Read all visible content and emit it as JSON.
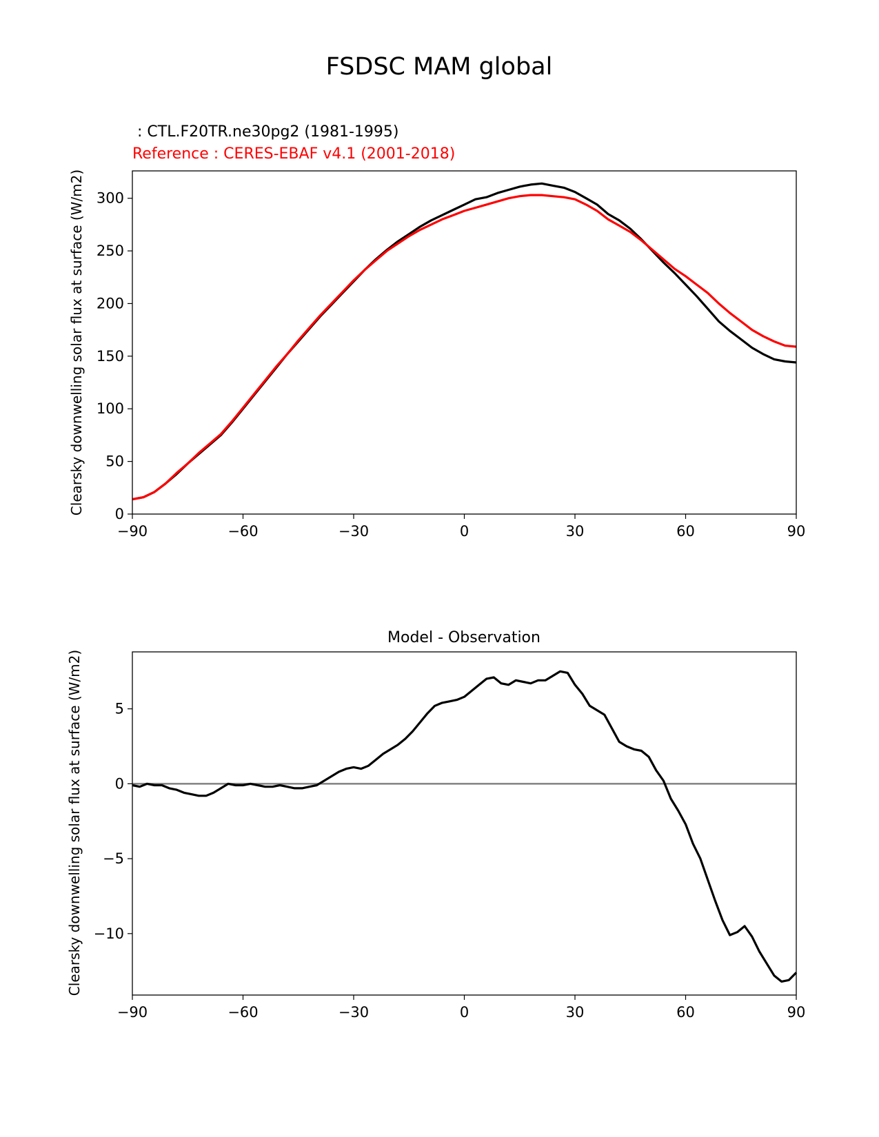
{
  "figure": {
    "title": "FSDSC MAM global"
  },
  "colors": {
    "test": "#000000",
    "reference": "#ff0000",
    "zero_line": "#808080",
    "axes": "#000000"
  },
  "chart_data": [
    {
      "type": "line",
      "subtitle_test": " : CTL.F20TR.ne30pg2 (1981-1995)",
      "subtitle_ref": "Reference : CERES-EBAF v4.1 (2001-2018)",
      "title": "",
      "xlabel": "",
      "ylabel": "Clearsky downwelling solar flux at surface (W/m2)",
      "xlim": [
        -90,
        90
      ],
      "ylim": [
        0,
        326
      ],
      "xticks": [
        -90,
        -60,
        -30,
        0,
        30,
        60,
        90
      ],
      "xtick_labels": [
        "−90",
        "−60",
        "−30",
        "0",
        "30",
        "60",
        "90"
      ],
      "yticks": [
        0,
        50,
        100,
        150,
        200,
        250,
        300
      ],
      "ytick_labels": [
        "0",
        "50",
        "100",
        "150",
        "200",
        "250",
        "300"
      ],
      "grid": false,
      "series": [
        {
          "role": "test",
          "x": [
            -90,
            -87,
            -84,
            -81,
            -78,
            -75,
            -72,
            -69,
            -66,
            -63,
            -60,
            -57,
            -54,
            -51,
            -48,
            -45,
            -42,
            -39,
            -36,
            -33,
            -30,
            -27,
            -24,
            -21,
            -18,
            -15,
            -12,
            -9,
            -6,
            -3,
            0,
            3,
            6,
            9,
            12,
            15,
            18,
            21,
            24,
            27,
            30,
            33,
            36,
            39,
            42,
            45,
            48,
            51,
            54,
            57,
            60,
            63,
            66,
            69,
            72,
            75,
            78,
            81,
            84,
            87,
            90
          ],
          "values": [
            14,
            16,
            21,
            29,
            38,
            48,
            57,
            66,
            75,
            87,
            100,
            113,
            126,
            139,
            152,
            164,
            176,
            188,
            199,
            210,
            221,
            232,
            242,
            251,
            259,
            266,
            273,
            279,
            284,
            289,
            294,
            299,
            301,
            305,
            308,
            311,
            313,
            314,
            312,
            310,
            306,
            300,
            294,
            285,
            279,
            271,
            261,
            250,
            239,
            229,
            218,
            207,
            195,
            183,
            174,
            166,
            158,
            152,
            147,
            145,
            144
          ]
        },
        {
          "role": "reference",
          "x": [
            -90,
            -87,
            -84,
            -81,
            -78,
            -75,
            -72,
            -69,
            -66,
            -63,
            -60,
            -57,
            -54,
            -51,
            -48,
            -45,
            -42,
            -39,
            -36,
            -33,
            -30,
            -27,
            -24,
            -21,
            -18,
            -15,
            -12,
            -9,
            -6,
            -3,
            0,
            3,
            6,
            9,
            12,
            15,
            18,
            21,
            24,
            27,
            30,
            33,
            36,
            39,
            42,
            45,
            48,
            51,
            54,
            57,
            60,
            63,
            66,
            69,
            72,
            75,
            78,
            81,
            84,
            87,
            90
          ],
          "values": [
            14,
            16,
            21,
            29,
            39,
            48,
            58,
            67,
            76,
            88,
            101,
            114,
            127,
            140,
            152,
            165,
            177,
            189,
            200,
            211,
            222,
            232,
            241,
            250,
            257,
            264,
            270,
            275,
            280,
            284,
            288,
            291,
            294,
            297,
            300,
            302,
            303,
            303,
            302,
            301,
            299,
            294,
            288,
            280,
            274,
            268,
            260,
            251,
            242,
            233,
            226,
            218,
            210,
            200,
            191,
            183,
            175,
            169,
            164,
            160,
            159
          ]
        }
      ]
    },
    {
      "type": "line",
      "title": "Model - Observation",
      "xlabel": "",
      "ylabel": "Clearsky downwelling solar flux at surface (W/m2)",
      "xlim": [
        -90,
        90
      ],
      "ylim": [
        -14.1,
        8.8
      ],
      "xticks": [
        -90,
        -60,
        -30,
        0,
        30,
        60,
        90
      ],
      "xtick_labels": [
        "−90",
        "−60",
        "−30",
        "0",
        "30",
        "60",
        "90"
      ],
      "yticks": [
        -10,
        -5,
        0,
        5
      ],
      "ytick_labels": [
        "−10",
        "−5",
        "0",
        "5"
      ],
      "grid": false,
      "zero_line": 0,
      "series": [
        {
          "role": "difference",
          "x": [
            -90,
            -88,
            -86,
            -84,
            -82,
            -80,
            -78,
            -76,
            -74,
            -72,
            -70,
            -68,
            -66,
            -64,
            -62,
            -60,
            -58,
            -56,
            -54,
            -52,
            -50,
            -48,
            -46,
            -44,
            -42,
            -40,
            -38,
            -36,
            -34,
            -32,
            -30,
            -28,
            -26,
            -24,
            -22,
            -20,
            -18,
            -16,
            -14,
            -12,
            -10,
            -8,
            -6,
            -4,
            -2,
            0,
            2,
            4,
            6,
            8,
            10,
            12,
            14,
            16,
            18,
            20,
            22,
            24,
            26,
            28,
            30,
            32,
            34,
            36,
            38,
            40,
            42,
            44,
            46,
            48,
            50,
            52,
            54,
            56,
            58,
            60,
            62,
            64,
            66,
            68,
            70,
            72,
            74,
            76,
            78,
            80,
            82,
            84,
            86,
            88,
            90
          ],
          "values": [
            -0.1,
            -0.2,
            0.0,
            -0.1,
            -0.1,
            -0.3,
            -0.4,
            -0.6,
            -0.7,
            -0.8,
            -0.8,
            -0.6,
            -0.3,
            0.0,
            -0.1,
            -0.1,
            0.0,
            -0.1,
            -0.2,
            -0.2,
            -0.1,
            -0.2,
            -0.3,
            -0.3,
            -0.2,
            -0.1,
            0.2,
            0.5,
            0.8,
            1.0,
            1.1,
            1.0,
            1.2,
            1.6,
            2.0,
            2.3,
            2.6,
            3.0,
            3.5,
            4.1,
            4.7,
            5.2,
            5.4,
            5.5,
            5.6,
            5.8,
            6.2,
            6.6,
            7.0,
            7.1,
            6.7,
            6.6,
            6.9,
            6.8,
            6.7,
            6.9,
            6.9,
            7.2,
            7.5,
            7.4,
            6.6,
            6.0,
            5.2,
            4.9,
            4.6,
            3.7,
            2.8,
            2.5,
            2.3,
            2.2,
            1.8,
            0.9,
            0.2,
            -1.0,
            -1.8,
            -2.7,
            -4.0,
            -5.0,
            -6.4,
            -7.8,
            -9.1,
            -10.1,
            -9.9,
            -9.5,
            -10.2,
            -11.2,
            -12.0,
            -12.8,
            -13.2,
            -13.1,
            -12.6
          ]
        }
      ]
    }
  ]
}
